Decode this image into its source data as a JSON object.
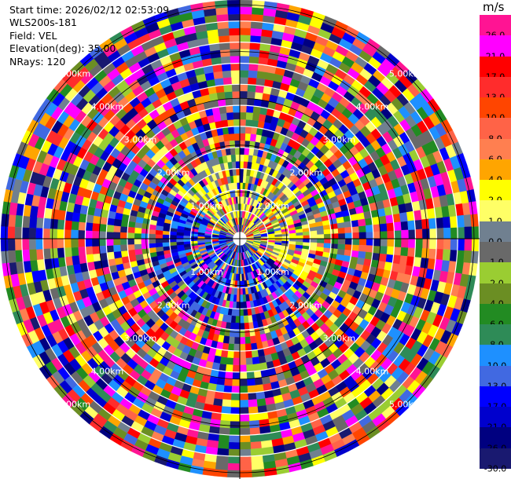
{
  "header": {
    "start_time": "Start time: 2026/02/12 02:53:09",
    "instrument": "WLS200s-181",
    "field": "Field: VEL",
    "elevation": "Elevation(deg): 35.00",
    "nrays": "NRays: 120"
  },
  "colorbar": {
    "unit": "m/s",
    "levels": [
      {
        "label": "26.0",
        "color": "#ff1493"
      },
      {
        "label": "21.0",
        "color": "#ff00ff"
      },
      {
        "label": "17.0",
        "color": "#ff0000"
      },
      {
        "label": "13.0",
        "color": "#ff2c2c"
      },
      {
        "label": "10.0",
        "color": "#ff4500"
      },
      {
        "label": "8.0",
        "color": "#ff6347"
      },
      {
        "label": "6.0",
        "color": "#ff7f50"
      },
      {
        "label": "4.0",
        "color": "#ffa500"
      },
      {
        "label": "2.0",
        "color": "#ffff00"
      },
      {
        "label": "1.0",
        "color": "#ffff66"
      },
      {
        "label": "0.0",
        "color": "#708090"
      },
      {
        "label": "-1.0",
        "color": "#696969"
      },
      {
        "label": "-2.0",
        "color": "#9acd32"
      },
      {
        "label": "-4.0",
        "color": "#6b8e23"
      },
      {
        "label": "-6.0",
        "color": "#228b22"
      },
      {
        "label": "-8.0",
        "color": "#2e8b57"
      },
      {
        "label": "-10.0",
        "color": "#1e90ff"
      },
      {
        "label": "-13.0",
        "color": "#4169e1"
      },
      {
        "label": "-17.0",
        "color": "#0000ff"
      },
      {
        "label": "-21.0",
        "color": "#0000cd"
      },
      {
        "label": "-26.0",
        "color": "#000080"
      },
      {
        "label": "-30.0",
        "color": "#191970"
      }
    ]
  },
  "chart_data": {
    "type": "heatmap",
    "projection": "polar PPI",
    "field": "VEL",
    "elevation_deg": 35.0,
    "nrays": 120,
    "range_ring_labels": [
      "1.00km",
      "2.00km",
      "3.00km",
      "4.00km",
      "5.00km"
    ],
    "range_rings_km": [
      1,
      2,
      3,
      4,
      5
    ],
    "grid": true
  }
}
